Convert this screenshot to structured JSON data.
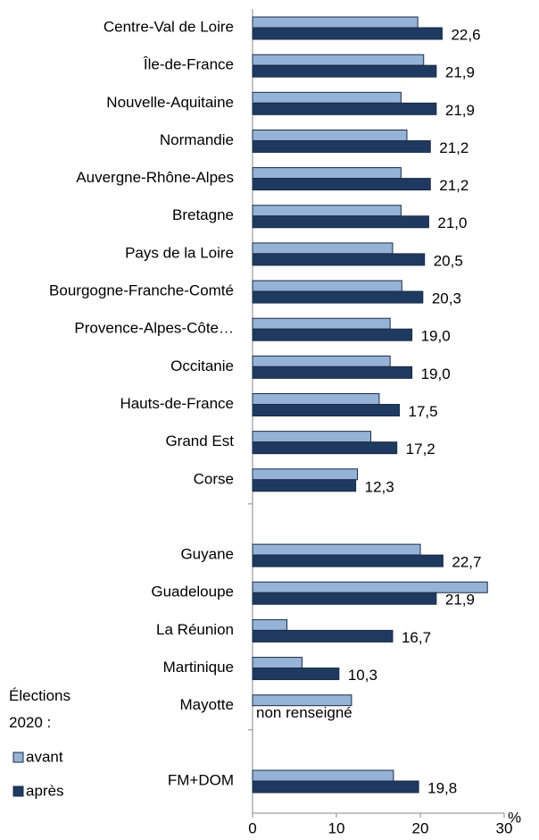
{
  "chart_data": {
    "type": "hbar",
    "categories": [
      "Centre-Val de Loire",
      "Île-de-France",
      "Nouvelle-Aquitaine",
      "Normandie",
      "Auvergne-Rhône-Alpes",
      "Bretagne",
      "Pays de la Loire",
      "Bourgogne-Franche-Comté",
      "Provence-Alpes-Côte…",
      "Occitanie",
      "Hauts-de-France",
      "Grand Est",
      "Corse",
      null,
      "Guyane",
      "Guadeloupe",
      "La Réunion",
      "Martinique",
      "Mayotte",
      null,
      "FM+DOM"
    ],
    "series": [
      {
        "name": "avant",
        "color": "#95b3d7",
        "values": [
          19.7,
          20.4,
          17.7,
          18.4,
          17.7,
          17.7,
          16.7,
          17.8,
          16.4,
          16.4,
          15.1,
          14.1,
          12.5,
          null,
          20.0,
          28.0,
          4.1,
          5.9,
          11.8,
          null,
          16.8
        ]
      },
      {
        "name": "après",
        "color": "#1f3a60",
        "values": [
          22.6,
          21.9,
          21.9,
          21.2,
          21.2,
          21.0,
          20.5,
          20.3,
          19.0,
          19.0,
          17.5,
          17.2,
          12.3,
          null,
          22.7,
          21.9,
          16.7,
          10.3,
          null,
          null,
          19.8
        ],
        "value_labels": [
          "22,6",
          "21,9",
          "21,9",
          "21,2",
          "21,2",
          "21,0",
          "20,5",
          "20,3",
          "19,0",
          "19,0",
          "17,5",
          "17,2",
          "12,3",
          null,
          "22,7",
          "21,9",
          "16,7",
          "10,3",
          "non renseigné",
          null,
          "19,8"
        ]
      }
    ],
    "legend_title": "Élections 2020 :",
    "x_unit": "%",
    "xlim": [
      0,
      30
    ],
    "xticks": [
      0,
      10,
      20,
      30
    ]
  }
}
